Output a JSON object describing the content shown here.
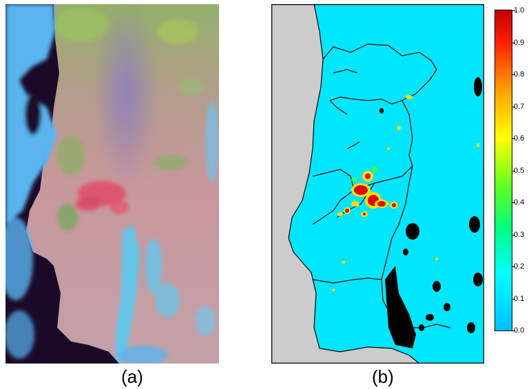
{
  "captions": {
    "a": "(a)",
    "b": "(b)"
  },
  "colorbar": {
    "min": 0.0,
    "max": 1.0,
    "ticks": [
      "1.0",
      "0.9",
      "0.8",
      "0.7",
      "0.6",
      "0.5",
      "0.4",
      "0.3",
      "0.2",
      "0.1",
      "0.0"
    ],
    "tick_values": [
      1.0,
      0.9,
      0.8,
      0.7,
      0.6,
      0.5,
      0.4,
      0.3,
      0.2,
      0.1,
      0.0
    ],
    "colormap": [
      "#00bfff",
      "#00ffff",
      "#00ff80",
      "#80ff00",
      "#ffff00",
      "#ffa000",
      "#ff0000",
      "#c00000"
    ]
  },
  "colors": {
    "sea_dark": "#1a0a2a",
    "cloud": "#5ab6f0",
    "land_pink": "#c89a9a",
    "land_green": "#8cb070",
    "smoke": "#8878b8",
    "burn": "#e05070",
    "map_sea": "#cccccc",
    "map_land": "#00e6ff",
    "map_border": "#000000",
    "map_nodata": "#000000",
    "fire_red": "#e00000",
    "fire_yellow": "#ffdd00",
    "fire_green": "#40ff40"
  }
}
